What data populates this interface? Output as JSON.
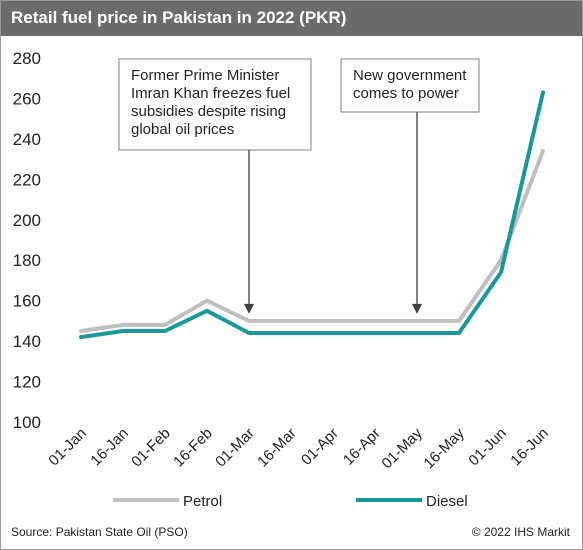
{
  "title": "Retail fuel price in Pakistan in 2022 (PKR)",
  "source": "Source: Pakistan State Oil (PSO)",
  "copyright": "© 2022 IHS Markit",
  "colors": {
    "title_bg": "#6b6b6b",
    "petrol": "#bfbfbf",
    "diesel": "#17989a",
    "annotation": "#404040"
  },
  "chart_data": {
    "type": "line",
    "x": [
      "01-Jan",
      "16-Jan",
      "01-Feb",
      "16-Feb",
      "01-Mar",
      "16-Mar",
      "01-Apr",
      "16-Apr",
      "01-May",
      "16-May",
      "01-Jun",
      "16-Jun"
    ],
    "ylim": [
      100,
      280
    ],
    "yticks": [
      100,
      120,
      140,
      160,
      180,
      200,
      220,
      240,
      260,
      280
    ],
    "series": [
      {
        "name": "Petrol",
        "color": "#bfbfbf",
        "values": [
          145,
          148,
          148,
          160,
          150,
          150,
          150,
          150,
          150,
          150,
          180,
          234
        ]
      },
      {
        "name": "Diesel",
        "color": "#17989a",
        "values": [
          142,
          145,
          145,
          155,
          144,
          144,
          144,
          144,
          144,
          144,
          174,
          263
        ]
      }
    ],
    "annotations": [
      {
        "text": [
          "Former Prime Minister",
          "Imran Khan freezes fuel",
          "subsidies despite rising",
          "global oil prices"
        ],
        "x": "01-Mar"
      },
      {
        "text": [
          "New government",
          "comes to power"
        ],
        "x": "01-May"
      }
    ],
    "legend": "bottom",
    "grid": false
  }
}
